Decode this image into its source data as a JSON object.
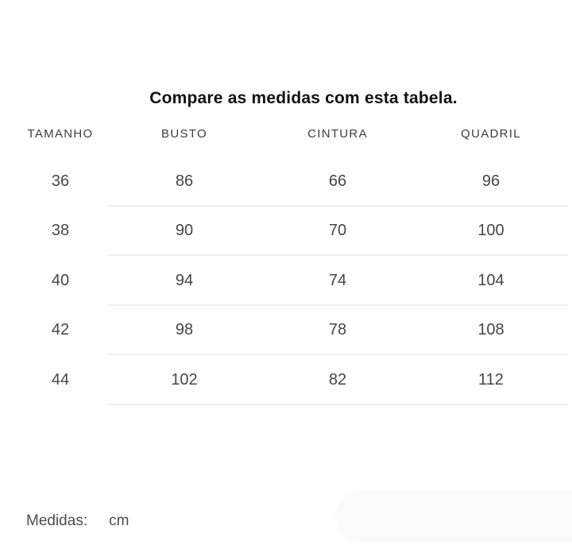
{
  "title": "Compare as medidas com esta tabela.",
  "table": {
    "headers": [
      "TAMANHO",
      "BUSTO",
      "CINTURA",
      "QUADRIL"
    ],
    "rows": [
      [
        "36",
        "86",
        "66",
        "96"
      ],
      [
        "38",
        "90",
        "70",
        "100"
      ],
      [
        "40",
        "94",
        "74",
        "104"
      ],
      [
        "42",
        "98",
        "78",
        "108"
      ],
      [
        "44",
        "102",
        "82",
        "112"
      ]
    ]
  },
  "footer": {
    "label": "Medidas:",
    "unit": "cm"
  },
  "colors": {
    "title_text": "#121212",
    "header_text": "#3d3d3d",
    "cell_text": "#464646",
    "footer_text": "#4c4c4c",
    "divider": "#f0f0f0",
    "pill_bg": "#fbfbfb"
  }
}
